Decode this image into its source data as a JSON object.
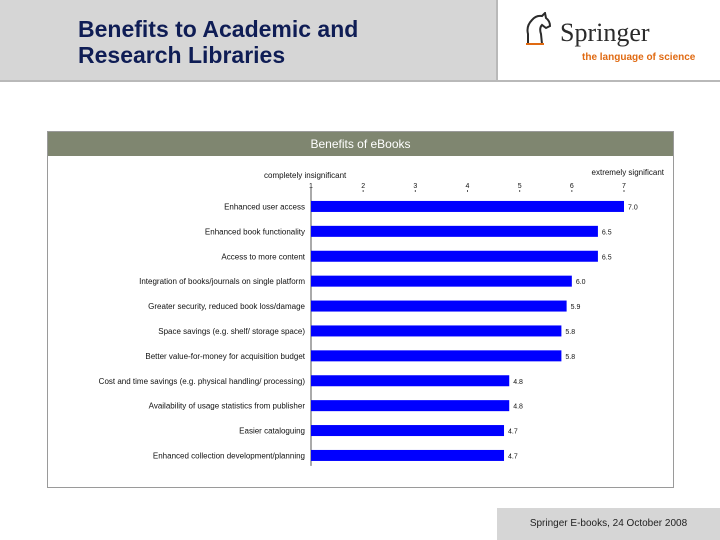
{
  "slide": {
    "title": "Benefits to Academic and\nResearch Libraries",
    "footer": "Springer E-books, 24 October 2008"
  },
  "logo": {
    "brand": "Springer",
    "tagline": "the language of science",
    "icon": "horse-head-icon"
  },
  "colors": {
    "bar": "#0000ff",
    "header_band": "#7f8670",
    "slide_title": "#0f1d55",
    "tagline": "#e06a12"
  },
  "chart_data": {
    "type": "bar",
    "orientation": "horizontal",
    "title": "Benefits of eBooks",
    "scale_labels": {
      "left": "completely insignificant",
      "right": "extremely significant"
    },
    "xlim": [
      1,
      7
    ],
    "ticks": [
      1,
      2,
      3,
      4,
      5,
      6,
      7
    ],
    "categories": [
      "Enhanced user access",
      "Enhanced book functionality",
      "Access to more content",
      "Integration of books/journals on single platform",
      "Greater security, reduced book loss/damage",
      "Space savings (e.g. shelf/ storage space)",
      "Better value-for-money for acquisition budget",
      "Cost and time savings (e.g. physical handling/ processing)",
      "Availability of usage statistics from publisher",
      "Easier cataloguing",
      "Enhanced collection development/planning"
    ],
    "values": [
      7.0,
      6.5,
      6.5,
      6.0,
      5.9,
      5.8,
      5.8,
      4.8,
      4.8,
      4.7,
      4.7
    ],
    "value_labels": [
      "7.0",
      "6.5",
      "6.5",
      "6.0",
      "5.9",
      "5.8",
      "5.8",
      "4.8",
      "4.8",
      "4.7",
      "4.7"
    ],
    "grid": false,
    "legend": "none"
  }
}
